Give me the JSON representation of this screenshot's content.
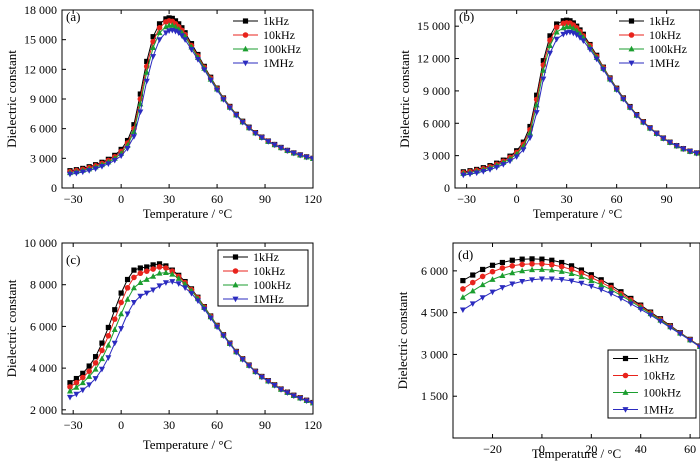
{
  "series_style": [
    {
      "name": "1kHz",
      "color": "#000000",
      "marker": "square"
    },
    {
      "name": "10kHz",
      "color": "#e8231c",
      "marker": "circle"
    },
    {
      "name": "100kHz",
      "color": "#1b9e2f",
      "marker": "triangle-up"
    },
    {
      "name": "1MHz",
      "color": "#2b2bbf",
      "marker": "triangle-down"
    }
  ],
  "chart_data": [
    {
      "type": "line",
      "panel": "(a)",
      "xlabel": "Temperature / °C",
      "ylabel": "Dielectric constant",
      "xlim": [
        -37,
        120
      ],
      "ylim": [
        0,
        18000
      ],
      "xticks": [
        -30,
        0,
        30,
        60,
        90,
        120
      ],
      "xtick_labels": [
        "−30",
        "0",
        "30",
        "60",
        "90",
        "120"
      ],
      "yticks": [
        0,
        3000,
        6000,
        9000,
        12000,
        15000,
        18000
      ],
      "ytick_labels": [
        "0",
        "3 000",
        "6 000",
        "9 000",
        "12 000",
        "15 000",
        "18 000"
      ],
      "legend": "top-right",
      "x": [
        -32,
        -28,
        -24,
        -20,
        -16,
        -12,
        -8,
        -4,
        0,
        4,
        8,
        12,
        16,
        20,
        24,
        28,
        30,
        32,
        34,
        36,
        38,
        40,
        44,
        48,
        52,
        56,
        60,
        64,
        68,
        72,
        76,
        80,
        84,
        88,
        92,
        96,
        100,
        104,
        108,
        112,
        116,
        120
      ],
      "series": [
        {
          "name": "1kHz",
          "values": [
            1750,
            1850,
            1980,
            2150,
            2350,
            2600,
            2900,
            3300,
            3900,
            4800,
            6400,
            9500,
            12800,
            15300,
            16600,
            17100,
            17200,
            17150,
            16900,
            16600,
            16200,
            15700,
            14600,
            13500,
            12300,
            11200,
            10100,
            9100,
            8250,
            7450,
            6750,
            6150,
            5600,
            5150,
            4750,
            4400,
            4100,
            3800,
            3550,
            3350,
            3150,
            3000
          ]
        },
        {
          "name": "10kHz",
          "values": [
            1650,
            1760,
            1880,
            2050,
            2250,
            2480,
            2780,
            3150,
            3700,
            4550,
            6000,
            9000,
            12300,
            14800,
            16200,
            16800,
            16900,
            16850,
            16600,
            16300,
            15950,
            15500,
            14400,
            13350,
            12200,
            11100,
            10050,
            9050,
            8200,
            7400,
            6700,
            6100,
            5580,
            5130,
            4730,
            4380,
            4080,
            3790,
            3540,
            3340,
            3140,
            2990
          ]
        },
        {
          "name": "100kHz",
          "values": [
            1550,
            1650,
            1780,
            1930,
            2120,
            2350,
            2630,
            3000,
            3500,
            4300,
            5700,
            8500,
            11700,
            14200,
            15700,
            16300,
            16450,
            16450,
            16300,
            16050,
            15700,
            15300,
            14250,
            13200,
            12100,
            11000,
            10000,
            9000,
            8150,
            7380,
            6680,
            6080,
            5560,
            5110,
            4710,
            4370,
            4070,
            3780,
            3530,
            3330,
            3130,
            2980
          ]
        },
        {
          "name": "1MHz",
          "values": [
            1400,
            1500,
            1620,
            1770,
            1950,
            2180,
            2450,
            2800,
            3250,
            4000,
            5200,
            7700,
            10800,
            13300,
            15000,
            15700,
            15900,
            15950,
            15850,
            15700,
            15400,
            15000,
            14000,
            13000,
            11950,
            10900,
            9900,
            8950,
            8100,
            7350,
            6650,
            6060,
            5540,
            5090,
            4700,
            4360,
            4060,
            3770,
            3520,
            3320,
            3120,
            2970
          ]
        }
      ]
    },
    {
      "type": "line",
      "panel": "(b)",
      "xlabel": "Temperature / °C",
      "ylabel": "Dielectric constant",
      "xlim": [
        -37,
        110
      ],
      "ylim": [
        0,
        16500
      ],
      "xticks": [
        -30,
        0,
        30,
        60,
        90
      ],
      "xtick_labels": [
        "−30",
        "0",
        "30",
        "60",
        "90"
      ],
      "yticks": [
        0,
        3000,
        6000,
        9000,
        12000,
        15000
      ],
      "ytick_labels": [
        "0",
        "3 000",
        "6 000",
        "9 000",
        "12 000",
        "15 000"
      ],
      "legend": "top-right",
      "x": [
        -32,
        -28,
        -24,
        -20,
        -16,
        -12,
        -8,
        -4,
        0,
        4,
        8,
        12,
        16,
        20,
        24,
        28,
        30,
        32,
        34,
        36,
        38,
        40,
        44,
        48,
        52,
        56,
        60,
        64,
        68,
        72,
        76,
        80,
        84,
        88,
        92,
        96,
        100,
        104,
        108
      ],
      "series": [
        {
          "name": "1kHz",
          "values": [
            1500,
            1600,
            1720,
            1880,
            2070,
            2300,
            2580,
            2950,
            3450,
            4250,
            5700,
            8600,
            11800,
            14100,
            15200,
            15500,
            15550,
            15500,
            15300,
            15000,
            14650,
            14250,
            13300,
            12300,
            11200,
            10200,
            9250,
            8350,
            7550,
            6800,
            6150,
            5580,
            5080,
            4630,
            4250,
            3930,
            3650,
            3420,
            3250
          ]
        },
        {
          "name": "10kHz",
          "values": [
            1420,
            1520,
            1640,
            1790,
            1970,
            2200,
            2480,
            2830,
            3300,
            4050,
            5400,
            8200,
            11400,
            13700,
            14900,
            15250,
            15300,
            15280,
            15100,
            14850,
            14500,
            14100,
            13200,
            12200,
            11150,
            10150,
            9200,
            8300,
            7500,
            6760,
            6120,
            5560,
            5060,
            4610,
            4240,
            3920,
            3640,
            3410,
            3240
          ]
        },
        {
          "name": "100kHz",
          "values": [
            1350,
            1440,
            1550,
            1700,
            1880,
            2100,
            2370,
            2700,
            3150,
            3850,
            5100,
            7700,
            10900,
            13200,
            14450,
            14850,
            14950,
            14950,
            14800,
            14600,
            14300,
            13950,
            13050,
            12100,
            11080,
            10100,
            9150,
            8270,
            7480,
            6740,
            6100,
            5540,
            5040,
            4600,
            4230,
            3910,
            3630,
            3400,
            3230
          ]
        },
        {
          "name": "1MHz",
          "values": [
            1200,
            1290,
            1400,
            1540,
            1710,
            1920,
            2180,
            2500,
            2900,
            3550,
            4650,
            7000,
            10100,
            12500,
            13800,
            14250,
            14400,
            14450,
            14350,
            14200,
            13950,
            13650,
            12850,
            11950,
            10980,
            10030,
            9100,
            8230,
            7450,
            6720,
            6080,
            5520,
            5030,
            4590,
            4220,
            3900,
            3620,
            3390,
            3220
          ]
        }
      ]
    },
    {
      "type": "line",
      "panel": "(c)",
      "xlabel": "Temperature / °C",
      "ylabel": "Dielectric constant",
      "xlim": [
        -37,
        120
      ],
      "ylim": [
        1800,
        10000
      ],
      "xticks": [
        -30,
        0,
        30,
        60,
        90,
        120
      ],
      "xtick_labels": [
        "−30",
        "0",
        "30",
        "60",
        "90",
        "120"
      ],
      "yticks": [
        2000,
        4000,
        6000,
        8000,
        10000
      ],
      "ytick_labels": [
        "2 000",
        "4 000",
        "6 000",
        "8 000",
        "10 000"
      ],
      "legend": "top-right",
      "x": [
        -32,
        -28,
        -24,
        -20,
        -16,
        -12,
        -8,
        -4,
        0,
        4,
        8,
        12,
        16,
        20,
        24,
        28,
        32,
        36,
        40,
        44,
        48,
        52,
        56,
        60,
        64,
        68,
        72,
        76,
        80,
        84,
        88,
        92,
        96,
        100,
        104,
        108,
        112,
        116,
        120
      ],
      "series": [
        {
          "name": "1kHz",
          "values": [
            3300,
            3500,
            3750,
            4100,
            4550,
            5200,
            5950,
            6800,
            7600,
            8250,
            8700,
            8800,
            8850,
            8950,
            9000,
            8900,
            8700,
            8450,
            8150,
            7800,
            7400,
            6950,
            6500,
            6050,
            5600,
            5200,
            4800,
            4450,
            4150,
            3850,
            3600,
            3400,
            3200,
            3000,
            2850,
            2700,
            2580,
            2460,
            2350
          ]
        },
        {
          "name": "10kHz",
          "values": [
            3100,
            3300,
            3550,
            3850,
            4250,
            4850,
            5550,
            6350,
            7150,
            7850,
            8350,
            8550,
            8650,
            8750,
            8850,
            8800,
            8650,
            8400,
            8100,
            7760,
            7370,
            6930,
            6480,
            6030,
            5590,
            5190,
            4790,
            4440,
            4140,
            3840,
            3590,
            3390,
            3190,
            2990,
            2840,
            2690,
            2570,
            2450,
            2340
          ]
        },
        {
          "name": "100kHz",
          "values": [
            2900,
            3080,
            3300,
            3600,
            3950,
            4450,
            5100,
            5850,
            6600,
            7300,
            7850,
            8100,
            8250,
            8400,
            8550,
            8580,
            8500,
            8300,
            8030,
            7710,
            7330,
            6900,
            6460,
            6010,
            5580,
            5180,
            4780,
            4430,
            4130,
            3830,
            3580,
            3380,
            3180,
            2980,
            2830,
            2680,
            2560,
            2440,
            2330
          ]
        },
        {
          "name": "1MHz",
          "values": [
            2600,
            2750,
            2950,
            3200,
            3500,
            3950,
            4500,
            5200,
            5900,
            6600,
            7150,
            7450,
            7600,
            7750,
            7950,
            8100,
            8150,
            8050,
            7850,
            7580,
            7230,
            6830,
            6400,
            5970,
            5550,
            5150,
            4760,
            4410,
            4110,
            3820,
            3570,
            3370,
            3170,
            2970,
            2820,
            2670,
            2550,
            2430,
            2320
          ]
        }
      ]
    },
    {
      "type": "line",
      "panel": "(d)",
      "xlabel": "Temperature / °C",
      "ylabel": "Dielectric constant",
      "xlim": [
        -36,
        64
      ],
      "ylim": [
        0,
        7000
      ],
      "xticks": [
        -20,
        0,
        20,
        40,
        60
      ],
      "xtick_labels": [
        "−20",
        "0",
        "20",
        "40",
        "60"
      ],
      "yticks": [
        1500,
        3000,
        4500,
        6000
      ],
      "ytick_labels": [
        "1 500",
        "3 000",
        "4 500",
        "6 000"
      ],
      "legend": "bottom-right",
      "x": [
        -32,
        -28,
        -24,
        -20,
        -16,
        -12,
        -8,
        -4,
        0,
        4,
        8,
        12,
        16,
        20,
        24,
        28,
        32,
        36,
        40,
        44,
        48,
        52,
        56,
        60,
        64
      ],
      "series": [
        {
          "name": "1kHz",
          "values": [
            5650,
            5850,
            6050,
            6200,
            6300,
            6380,
            6420,
            6430,
            6420,
            6380,
            6300,
            6180,
            6030,
            5860,
            5680,
            5480,
            5250,
            5010,
            4770,
            4520,
            4280,
            4030,
            3780,
            3540,
            3300
          ]
        },
        {
          "name": "10kHz",
          "values": [
            5350,
            5580,
            5800,
            5970,
            6100,
            6180,
            6230,
            6250,
            6250,
            6220,
            6150,
            6050,
            5920,
            5760,
            5590,
            5400,
            5180,
            4960,
            4730,
            4490,
            4250,
            4010,
            3770,
            3530,
            3290
          ]
        },
        {
          "name": "100kHz",
          "values": [
            5050,
            5280,
            5500,
            5690,
            5830,
            5930,
            6000,
            6040,
            6050,
            6030,
            5980,
            5900,
            5790,
            5650,
            5500,
            5320,
            5120,
            4910,
            4690,
            4460,
            4230,
            3990,
            3760,
            3520,
            3280
          ]
        },
        {
          "name": "1MHz",
          "values": [
            4600,
            4820,
            5040,
            5240,
            5400,
            5530,
            5620,
            5680,
            5710,
            5710,
            5690,
            5640,
            5560,
            5450,
            5330,
            5180,
            5010,
            4820,
            4620,
            4410,
            4190,
            3960,
            3740,
            3510,
            3270
          ]
        }
      ]
    }
  ]
}
